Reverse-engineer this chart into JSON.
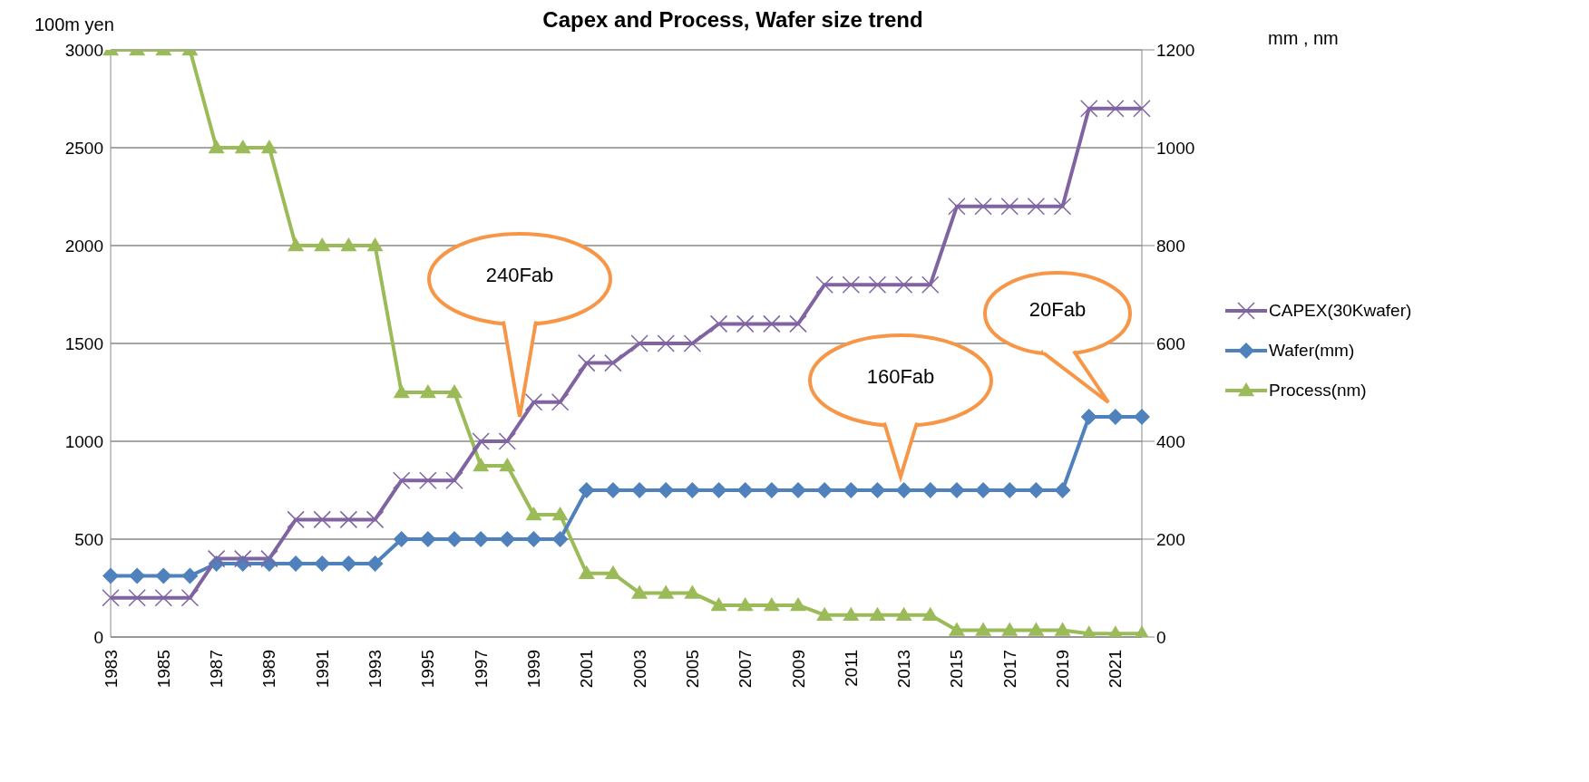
{
  "chart_data": {
    "type": "line",
    "title": "Capex and Process, Wafer size trend",
    "ylabel": "100m yen",
    "y2label": "mm , nm",
    "categories": [
      "1983",
      null,
      "1985",
      null,
      "1987",
      null,
      "1989",
      null,
      "1991",
      null,
      "1993",
      null,
      "1995",
      null,
      "1997",
      null,
      "1999",
      null,
      "2001",
      null,
      "2003",
      null,
      "2005",
      null,
      "2007",
      null,
      "2009",
      null,
      "2011",
      null,
      "2013",
      null,
      "2015",
      null,
      "2017",
      null,
      "2019",
      null,
      "2021",
      null
    ],
    "series": [
      {
        "name": "CAPEX(30Kwafer)",
        "color": "#8064a2",
        "marker": "cross",
        "values": [
          200,
          200,
          200,
          200,
          400,
          400,
          400,
          600,
          600,
          600,
          600,
          800,
          800,
          800,
          1000,
          1000,
          1200,
          1200,
          1400,
          1400,
          1500,
          1500,
          1500,
          1600,
          1600,
          1600,
          1600,
          1800,
          1800,
          1800,
          1800,
          1800,
          2200,
          2200,
          2200,
          2200,
          2200,
          2700,
          2700,
          2700
        ]
      },
      {
        "name": "Wafer(mm)",
        "color": "#4f81bd",
        "marker": "diamond",
        "axis": "y2",
        "values": [
          125,
          125,
          125,
          125,
          150,
          150,
          150,
          150,
          150,
          150,
          150,
          200,
          200,
          200,
          200,
          200,
          200,
          200,
          300,
          300,
          300,
          300,
          300,
          300,
          300,
          300,
          300,
          300,
          300,
          300,
          300,
          300,
          300,
          300,
          300,
          300,
          300,
          450,
          450,
          450
        ]
      },
      {
        "name": "Process(nm)",
        "color": "#9bbb59",
        "marker": "triangle",
        "axis": "y2",
        "values": [
          1200,
          1200,
          1200,
          1200,
          1000,
          1000,
          1000,
          800,
          800,
          800,
          800,
          500,
          500,
          500,
          350,
          350,
          250,
          250,
          130,
          130,
          90,
          90,
          90,
          65,
          65,
          65,
          65,
          45,
          45,
          45,
          45,
          45,
          14,
          14,
          14,
          14,
          14,
          7,
          7,
          7
        ]
      }
    ],
    "ylim": [
      0,
      3000
    ],
    "yticks": [
      0,
      500,
      1000,
      1500,
      2000,
      2500,
      3000
    ],
    "y2lim": [
      0,
      1200
    ],
    "y2ticks": [
      0,
      200,
      400,
      600,
      800,
      1000,
      1200
    ],
    "grid": "y",
    "legend": "right",
    "line_style": "solid",
    "annotations": [
      "240Fab",
      "160Fab",
      "20Fab"
    ]
  }
}
